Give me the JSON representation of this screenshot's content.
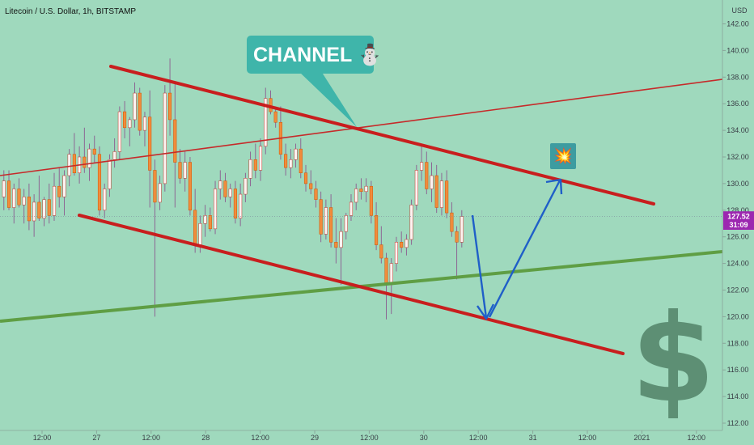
{
  "chart_title": "Litecoin / U.S. Dollar, 1h, BITSTAMP",
  "currency_label": "USD",
  "price_badge": "127.52",
  "countdown_badge": "31:09",
  "callout_text": "CHANNEL ⛄",
  "explosion_icon": "💥",
  "dollar_sign": "$",
  "colors": {
    "background": "#9fd9bd",
    "up_candle": "#fdf2f1",
    "down_candle": "#f08c3c",
    "channel_line": "#c81e1e",
    "trend_line": "#5f9e44",
    "arrow": "#1f5fc8",
    "callout": "#3fb5aa",
    "badge": "#9c27b0"
  },
  "chart_data": {
    "type": "candlestick",
    "title": "Litecoin / U.S. Dollar, 1h, BITSTAMP",
    "ylabel": "USD",
    "ylim": [
      111.5,
      143.5
    ],
    "y_ticks": [
      "142.00",
      "140.00",
      "138.00",
      "136.00",
      "134.00",
      "132.00",
      "130.00",
      "128.00",
      "126.00",
      "124.00",
      "122.00",
      "120.00",
      "118.00",
      "116.00",
      "114.00",
      "112.00"
    ],
    "x_ticks": [
      "12:00",
      "27",
      "12:00",
      "28",
      "12:00",
      "29",
      "12:00",
      "30",
      "12:00",
      "31",
      "12:00",
      "2021",
      "12:00"
    ],
    "last_price": 127.52,
    "candles": [
      [
        129,
        131,
        128,
        130.2
      ],
      [
        130.2,
        131,
        128,
        128.2
      ],
      [
        128.2,
        130,
        127,
        129.6
      ],
      [
        129.6,
        130.4,
        128.2,
        128.4
      ],
      [
        128.4,
        129.6,
        127,
        129
      ],
      [
        129,
        130,
        126.5,
        127.2
      ],
      [
        127.2,
        129.2,
        126,
        128.6
      ],
      [
        128.6,
        130.6,
        127.2,
        127.4
      ],
      [
        127.4,
        129,
        126.8,
        128.8
      ],
      [
        128.8,
        130,
        127,
        127.6
      ],
      [
        127.6,
        130.8,
        127.2,
        129.8
      ],
      [
        129.8,
        131.2,
        128.2,
        129
      ],
      [
        129,
        131,
        127.6,
        130.6
      ],
      [
        130.6,
        132.6,
        129.8,
        132.2
      ],
      [
        132.2,
        133.8,
        130.6,
        130.8
      ],
      [
        130.8,
        132.8,
        130,
        132
      ],
      [
        132,
        134.2,
        130.8,
        131.2
      ],
      [
        131.2,
        133,
        130.2,
        132.6
      ],
      [
        132.6,
        133.6,
        131.6,
        132.2
      ],
      [
        132.2,
        132.8,
        127.6,
        128
      ],
      [
        128,
        130,
        127.4,
        129.6
      ],
      [
        129.6,
        132.2,
        129,
        131.8
      ],
      [
        131.8,
        133.4,
        131.2,
        132.4
      ],
      [
        132.4,
        135.8,
        131.8,
        135.4
      ],
      [
        135.4,
        136.2,
        133.4,
        134.2
      ],
      [
        134.2,
        135,
        132.8,
        134.8
      ],
      [
        134.8,
        137.6,
        134.2,
        136.8
      ],
      [
        136.8,
        137.2,
        133.6,
        134
      ],
      [
        134,
        135.4,
        132.8,
        135
      ],
      [
        135,
        137,
        128.2,
        131
      ],
      [
        131,
        131.8,
        120,
        128.6
      ],
      [
        128.6,
        130.6,
        128,
        130
      ],
      [
        130,
        137.4,
        129.4,
        136.8
      ],
      [
        136.8,
        139.4,
        133.6,
        134.8
      ],
      [
        134.8,
        137.6,
        128.2,
        131.6
      ],
      [
        131.6,
        132.6,
        130,
        130.4
      ],
      [
        130.4,
        132.4,
        129.4,
        131.6
      ],
      [
        131.6,
        132,
        127.6,
        128
      ],
      [
        128,
        129.6,
        124.8,
        125.4
      ],
      [
        125.4,
        127.6,
        124.8,
        127
      ],
      [
        127,
        128.4,
        126,
        127.6
      ],
      [
        127.6,
        128.2,
        126.4,
        126.6
      ],
      [
        126.6,
        130.2,
        126.2,
        129.6
      ],
      [
        129.6,
        131,
        128.8,
        130.2
      ],
      [
        130.2,
        130.8,
        128.6,
        129
      ],
      [
        129,
        130,
        128.2,
        129.6
      ],
      [
        129.6,
        130.2,
        127,
        127.4
      ],
      [
        127.4,
        130,
        126.8,
        129.2
      ],
      [
        129.2,
        130.8,
        128.6,
        130.4
      ],
      [
        130.4,
        132.4,
        129.8,
        131.8
      ],
      [
        131.8,
        133,
        130.4,
        131
      ],
      [
        131,
        133.4,
        130.2,
        132.8
      ],
      [
        132.8,
        137.2,
        132.2,
        136.4
      ],
      [
        136.4,
        137,
        135.2,
        135.4
      ],
      [
        135.4,
        135.8,
        134.2,
        134.6
      ],
      [
        134.6,
        135.8,
        131.8,
        132.2
      ],
      [
        132.2,
        133,
        130.6,
        131.2
      ],
      [
        131.2,
        132.6,
        130.4,
        131.8
      ],
      [
        131.8,
        133,
        131.2,
        132.6
      ],
      [
        132.6,
        133.4,
        130.4,
        130.8
      ],
      [
        130.8,
        131.4,
        129.4,
        130
      ],
      [
        130,
        131,
        129.2,
        129.6
      ],
      [
        129.6,
        130.2,
        128.2,
        128.8
      ],
      [
        128.8,
        129.4,
        125.6,
        126.2
      ],
      [
        126.2,
        128.8,
        125.8,
        128.2
      ],
      [
        128.2,
        129.2,
        125.2,
        125.6
      ],
      [
        125.6,
        127.4,
        124,
        125.2
      ],
      [
        125.2,
        127.4,
        122.4,
        126.4
      ],
      [
        126.4,
        127.8,
        125.8,
        127.6
      ],
      [
        127.6,
        129.2,
        127.2,
        128.6
      ],
      [
        128.6,
        130,
        128,
        129.6
      ],
      [
        129.6,
        130.4,
        128.8,
        129.4
      ],
      [
        129.4,
        130.4,
        128.6,
        129.8
      ],
      [
        129.8,
        130.2,
        127,
        127.6
      ],
      [
        127.6,
        128.6,
        125,
        125.4
      ],
      [
        125.4,
        126.8,
        124,
        124.4
      ],
      [
        124.4,
        124.8,
        119.8,
        122.4
      ],
      [
        122.4,
        124.4,
        120.2,
        124
      ],
      [
        124,
        126,
        123.4,
        125.6
      ],
      [
        125.6,
        126.4,
        124.8,
        125.2
      ],
      [
        125.2,
        126.2,
        124.6,
        125.8
      ],
      [
        125.8,
        128.8,
        125.4,
        128.4
      ],
      [
        128.4,
        131.4,
        128,
        131
      ],
      [
        131,
        132.8,
        130.2,
        131.6
      ],
      [
        131.6,
        132.4,
        129.2,
        129.6
      ],
      [
        129.6,
        131.6,
        128.6,
        130.6
      ],
      [
        130.6,
        131.4,
        127.8,
        128.2
      ],
      [
        128.2,
        130.8,
        127.6,
        130.2
      ],
      [
        130.2,
        131,
        127.4,
        127.8
      ],
      [
        127.8,
        128.6,
        126,
        126.4
      ],
      [
        126.4,
        126.8,
        122.8,
        125.6
      ],
      [
        125.6,
        128,
        125.2,
        127.52
      ]
    ]
  }
}
